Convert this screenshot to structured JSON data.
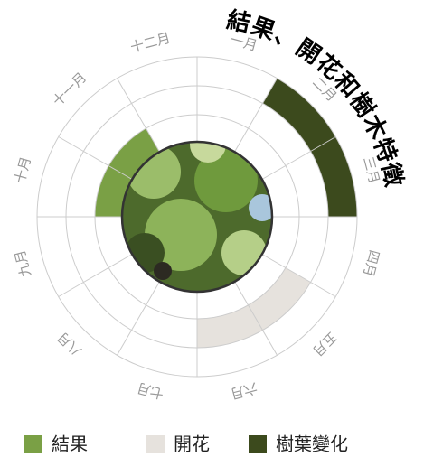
{
  "title": "結果、開花和樹木特徵",
  "months": [
    "一月",
    "二月",
    "三月",
    "四月",
    "五月",
    "六月",
    "七月",
    "八月",
    "九月",
    "十月",
    "十一月",
    "十二月"
  ],
  "layers": [
    {
      "name": "結果",
      "color": "#7aa045",
      "months": [
        "十月",
        "十一月"
      ]
    },
    {
      "name": "開花",
      "color": "#e6e2dd",
      "months": [
        "五月",
        "六月"
      ]
    },
    {
      "name": "樹葉變化",
      "color": "#3c4a1d",
      "months": [
        "二月",
        "三月"
      ]
    }
  ]
}
